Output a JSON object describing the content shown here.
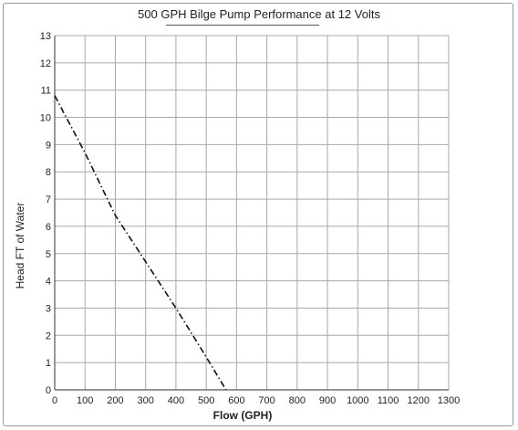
{
  "chart_data": {
    "type": "line",
    "title": "500 GPH Bilge Pump Performance at 12 Volts",
    "xlabel": "Flow (GPH)",
    "ylabel": "Head FT of Water",
    "xlim": [
      0,
      1300
    ],
    "ylim": [
      0,
      13
    ],
    "xticks": [
      0,
      100,
      200,
      300,
      400,
      500,
      600,
      700,
      800,
      900,
      1000,
      1100,
      1200,
      1300
    ],
    "yticks": [
      0,
      1,
      2,
      3,
      4,
      5,
      6,
      7,
      8,
      9,
      10,
      11,
      12,
      13
    ],
    "grid": true,
    "line_style": "dash-dot",
    "colors": {
      "line": "#111111",
      "grid": "#a8a8a8",
      "axes": "#555555"
    },
    "series": [
      {
        "x": [
          0,
          100,
          200,
          300,
          400,
          500,
          565
        ],
        "y": [
          10.8,
          8.7,
          6.4,
          4.7,
          3.0,
          1.2,
          0
        ]
      }
    ]
  }
}
